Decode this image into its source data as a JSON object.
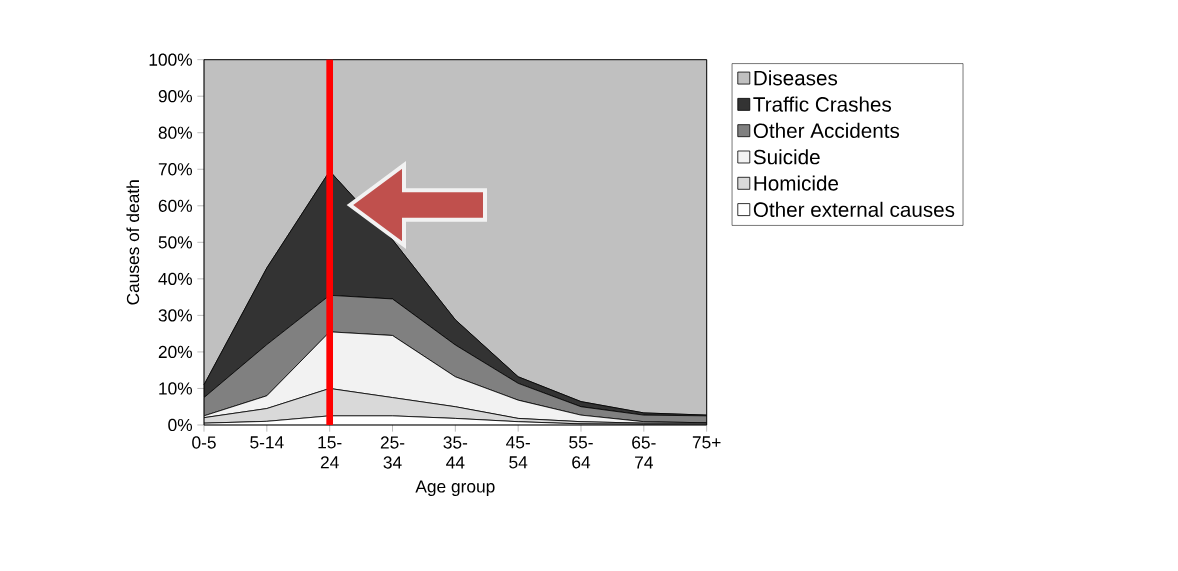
{
  "chart_data": {
    "type": "area",
    "stacked": true,
    "xlabel": "Age group",
    "ylabel": "Causes of death",
    "categories": [
      "0-5",
      "5-14",
      "15-24",
      "25-34",
      "35-44",
      "45-54",
      "55-64",
      "65-74",
      "75+"
    ],
    "series": [
      {
        "name": "Other external causes",
        "color": "#ffffff",
        "values": [
          0.5,
          1,
          2.5,
          2.5,
          1.8,
          0.9,
          0.3,
          0.2,
          0.2
        ]
      },
      {
        "name": "Homicide",
        "color": "#d9d9d9",
        "values": [
          1.5,
          3.5,
          7.5,
          5,
          3.2,
          0.9,
          0.6,
          0.3,
          0.3
        ]
      },
      {
        "name": "Suicide",
        "color": "#f2f2f2",
        "values": [
          0.5,
          3.5,
          15.5,
          17,
          8.2,
          5,
          1.8,
          0.4,
          0.1
        ]
      },
      {
        "name": "Other Accidents",
        "color": "#808080",
        "values": [
          5,
          14,
          10,
          10,
          8.7,
          4.6,
          2.3,
          1.8,
          1.9
        ]
      },
      {
        "name": "Traffic Crashes",
        "color": "#333333",
        "values": [
          3.5,
          21,
          34,
          16.2,
          6.9,
          1.8,
          1.4,
          0.6,
          0.2
        ]
      },
      {
        "name": "Diseases",
        "color": "#c0c0c0",
        "values": [
          89,
          57,
          30.5,
          49.3,
          71.2,
          86.8,
          93.6,
          96.7,
          97.3
        ]
      }
    ],
    "ylim": [
      0,
      100
    ],
    "yticks": [
      {
        "value": 0,
        "label": "0%"
      },
      {
        "value": 10,
        "label": "10%"
      },
      {
        "value": 20,
        "label": "20%"
      },
      {
        "value": 30,
        "label": "30%"
      },
      {
        "value": 40,
        "label": "40%"
      },
      {
        "value": 50,
        "label": "50%"
      },
      {
        "value": 60,
        "label": "60%"
      },
      {
        "value": 70,
        "label": "70%"
      },
      {
        "value": 80,
        "label": "80%"
      },
      {
        "value": 90,
        "label": "90%"
      },
      {
        "value": 100,
        "label": "100%"
      }
    ],
    "ref_lines": [
      {
        "axis": "x",
        "value": "15-24",
        "color": "#ff0000"
      }
    ],
    "legend": "right",
    "grid": false
  }
}
